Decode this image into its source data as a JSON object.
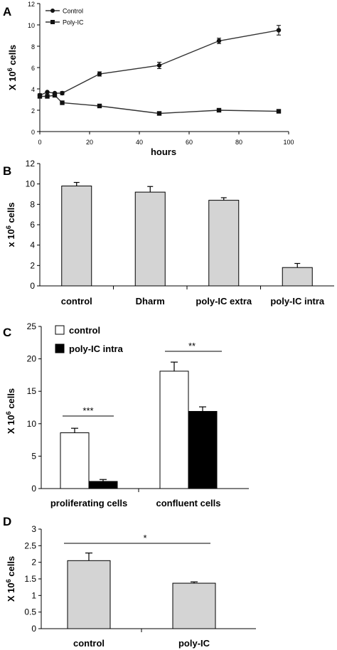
{
  "colors": {
    "bar_gray": "#d4d4d4",
    "bar_black": "#000000",
    "bar_white": "#ffffff",
    "axis": "#000000",
    "line": "#333333"
  },
  "chart_data": [
    {
      "panel": "A",
      "type": "line",
      "xlabel": "hours",
      "ylabel": "X 10",
      "ylabel_sup": "6",
      "ylabel_tail": " cells",
      "xlim": [
        0,
        100
      ],
      "ylim": [
        0,
        12
      ],
      "xticks": [
        "0",
        "20",
        "40",
        "60",
        "80",
        "100"
      ],
      "yticks": [
        "0",
        "2",
        "4",
        "6",
        "8",
        "10",
        "12"
      ],
      "legend_position": "top-left",
      "series": [
        {
          "name": "Control",
          "marker": "circle",
          "x": [
            0,
            3,
            6,
            9,
            24,
            48,
            72,
            96
          ],
          "y": [
            3.4,
            3.7,
            3.6,
            3.6,
            5.4,
            6.2,
            8.5,
            9.5
          ],
          "err": [
            0.15,
            0.1,
            0.1,
            0.15,
            0.2,
            0.3,
            0.25,
            0.45
          ]
        },
        {
          "name": "Poly-IC",
          "marker": "square",
          "x": [
            0,
            3,
            6,
            9,
            24,
            48,
            72,
            96
          ],
          "y": [
            3.3,
            3.3,
            3.4,
            2.7,
            2.4,
            1.7,
            2.0,
            1.9
          ],
          "err": [
            0.05,
            0.05,
            0.05,
            0.05,
            0.05,
            0.05,
            0.05,
            0.05
          ]
        }
      ]
    },
    {
      "panel": "B",
      "type": "bar",
      "ylabel": "x 10",
      "ylabel_sup": "6",
      "ylabel_tail": " cells",
      "ylim": [
        0,
        12
      ],
      "yticks": [
        "0",
        "2",
        "4",
        "6",
        "8",
        "10",
        "12"
      ],
      "categories": [
        "control",
        "Dharm",
        "poly-IC extra",
        "poly-IC intra"
      ],
      "values": [
        9.8,
        9.2,
        8.4,
        1.8
      ],
      "err": [
        0.35,
        0.55,
        0.25,
        0.4
      ]
    },
    {
      "panel": "C",
      "type": "bar",
      "ylabel": "X 10",
      "ylabel_sup": "6",
      "ylabel_tail": " cells",
      "ylim": [
        0,
        25
      ],
      "yticks": [
        "0",
        "5",
        "10",
        "15",
        "20",
        "25"
      ],
      "categories": [
        "proliferating cells",
        "confluent cells"
      ],
      "legend_position": "top-left",
      "series": [
        {
          "name": "control",
          "values": [
            8.6,
            18.1
          ],
          "err": [
            0.7,
            1.4
          ]
        },
        {
          "name": "poly-IC intra",
          "values": [
            1.1,
            11.9
          ],
          "err": [
            0.3,
            0.7
          ]
        }
      ],
      "annotations": [
        "***",
        "**"
      ]
    },
    {
      "panel": "D",
      "type": "bar",
      "ylabel": "X 10",
      "ylabel_sup": "6",
      "ylabel_tail": " cells",
      "ylim": [
        0,
        3
      ],
      "yticks": [
        "0",
        "0.5",
        "1",
        "1.5",
        "2",
        "2.5",
        "3"
      ],
      "categories": [
        "control",
        "poly-IC"
      ],
      "values": [
        2.05,
        1.37
      ],
      "err": [
        0.23,
        0.04
      ],
      "annotations": [
        "*"
      ]
    }
  ]
}
